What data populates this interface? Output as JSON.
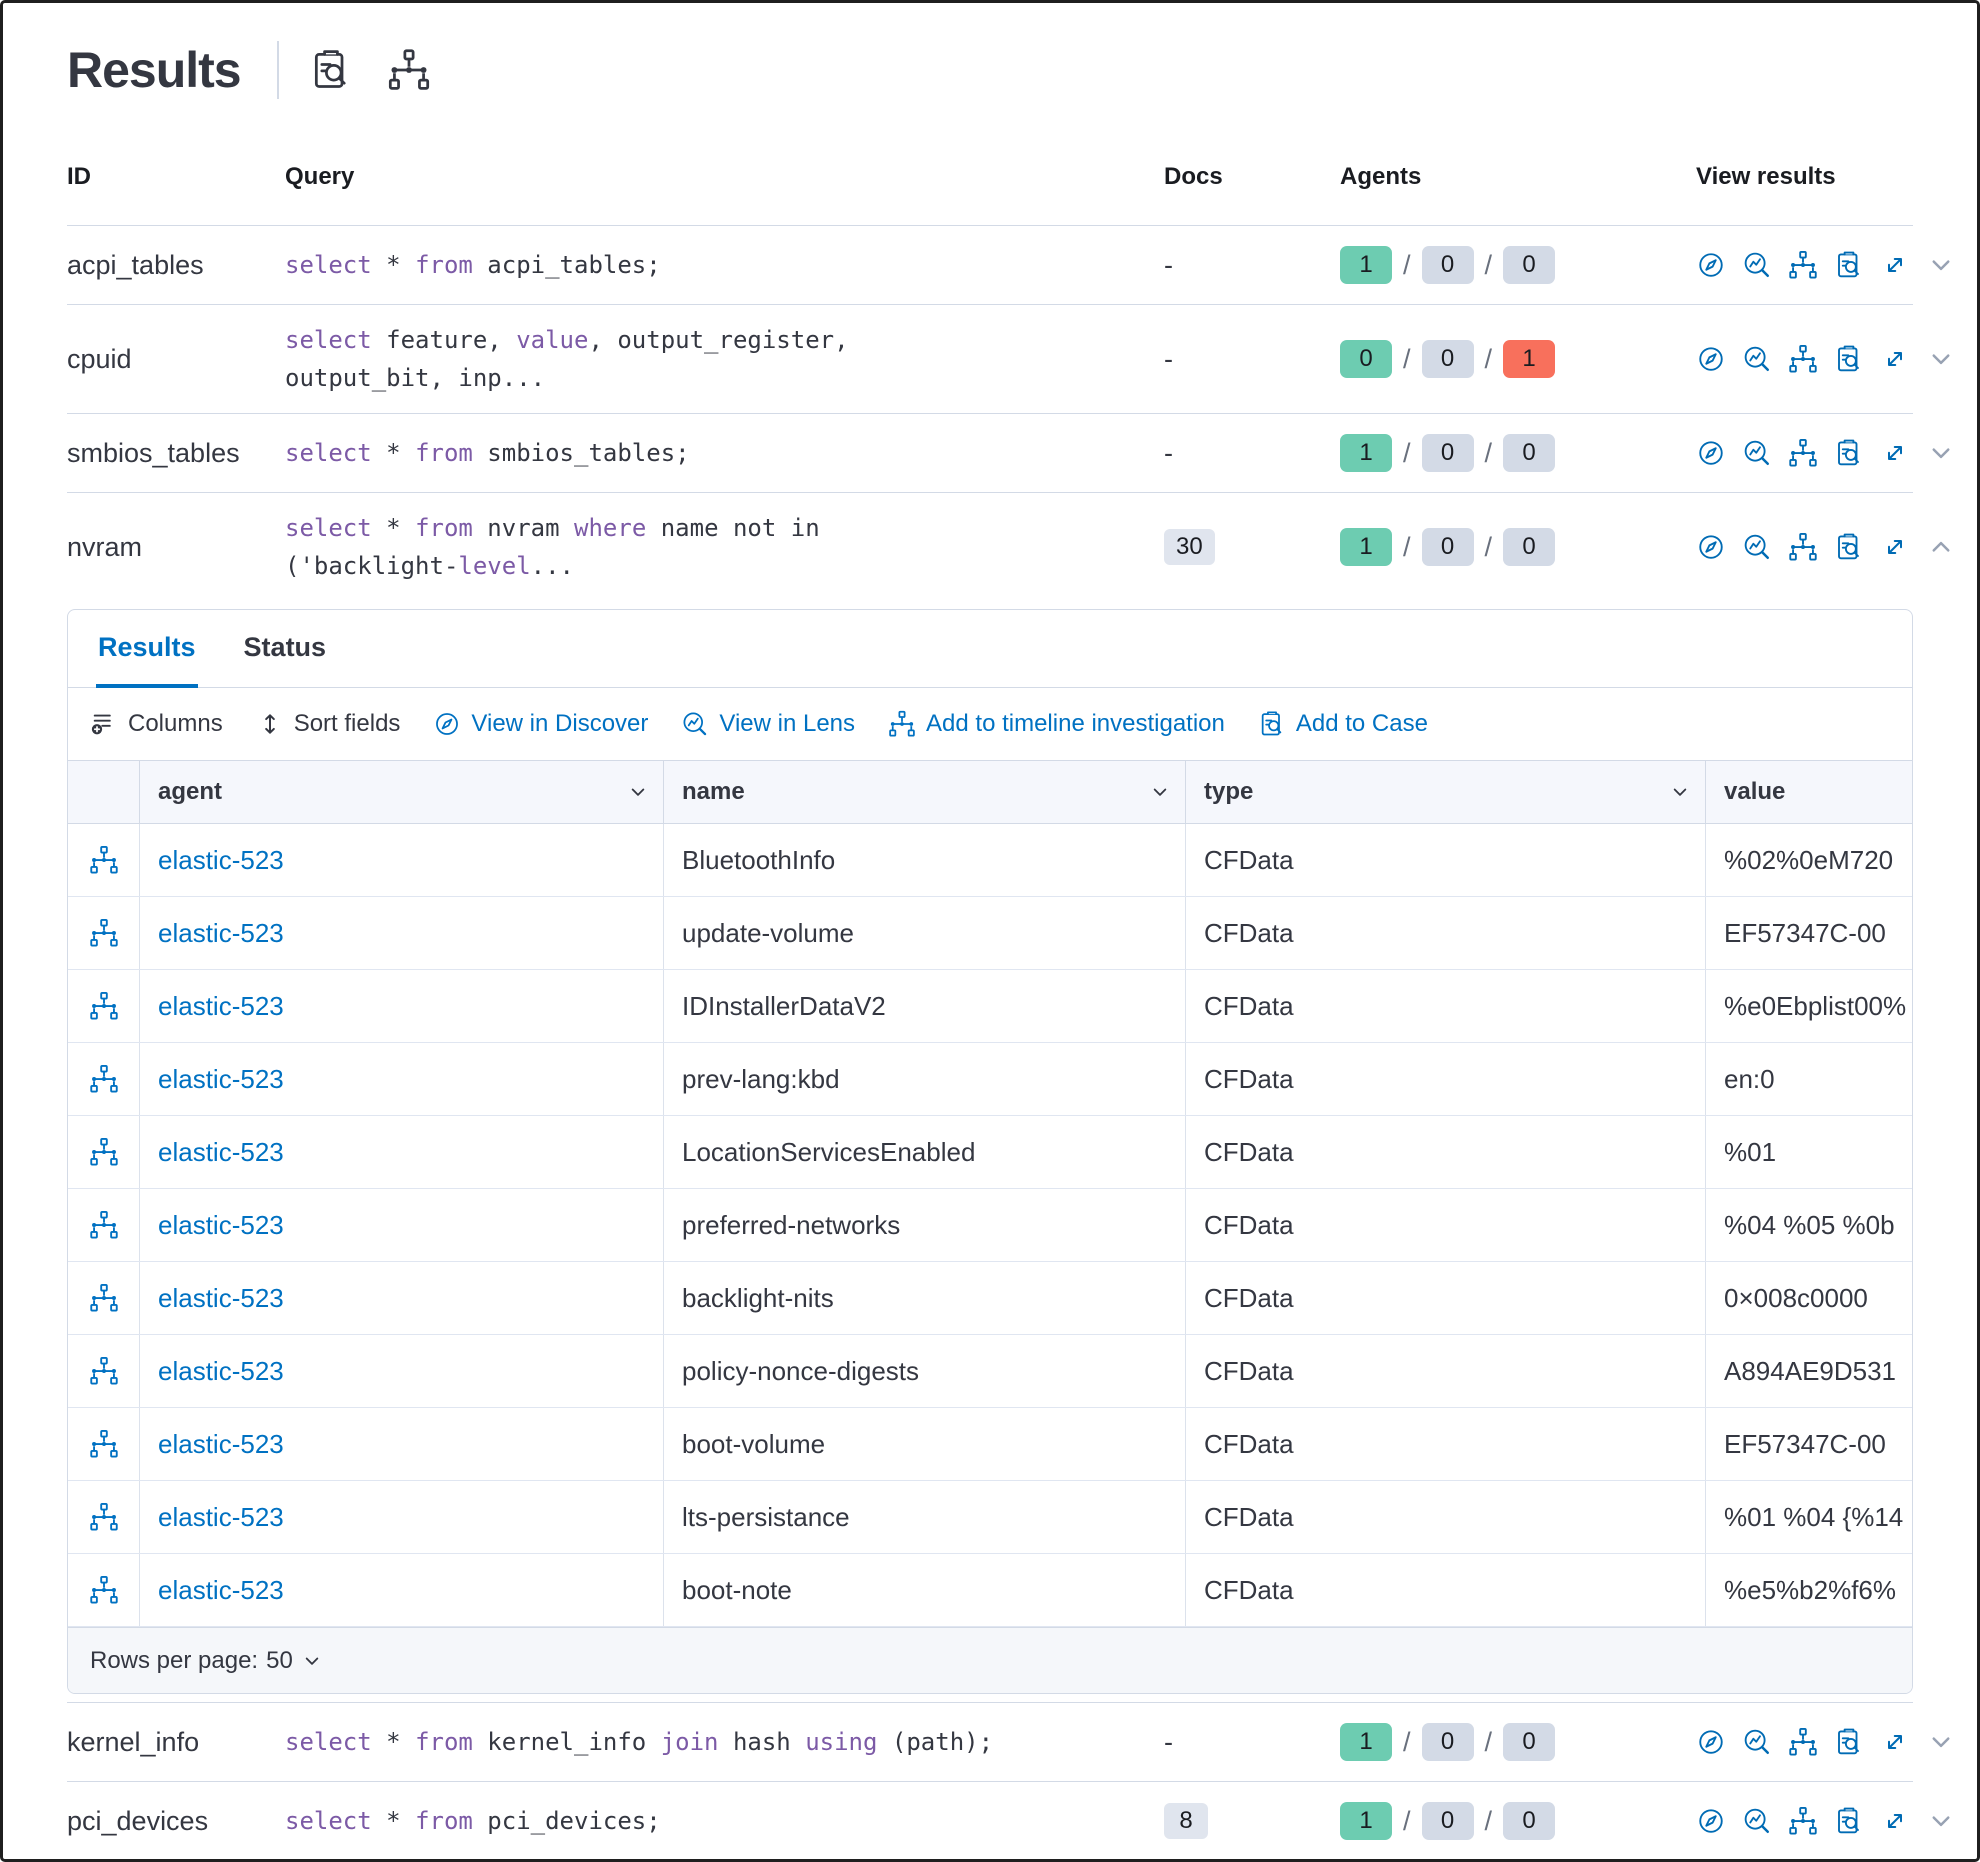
{
  "title": "Results",
  "header": {
    "icons": [
      "inspect-icon",
      "timeline-icon"
    ]
  },
  "table": {
    "headers": {
      "id": "ID",
      "query": "Query",
      "docs": "Docs",
      "agents": "Agents",
      "view": "View results"
    },
    "rows": [
      {
        "id": "acpi_tables",
        "query_lines": [
          [
            [
              "select",
              "k"
            ],
            [
              " * ",
              ""
            ],
            [
              "from",
              "k"
            ],
            [
              " acpi_tables;",
              ""
            ]
          ]
        ],
        "docs": "-",
        "docs_badge": false,
        "agents": [
          [
            "1",
            "success"
          ],
          [
            "0",
            "neutral"
          ],
          [
            "0",
            "neutral"
          ]
        ],
        "expanded": false
      },
      {
        "id": "cpuid",
        "query_lines": [
          [
            [
              "select",
              "k"
            ],
            [
              " feature, ",
              ""
            ],
            [
              "value",
              "k"
            ],
            [
              ", output_register,",
              ""
            ]
          ],
          [
            [
              "output_bit, inp...",
              ""
            ]
          ]
        ],
        "docs": "-",
        "docs_badge": false,
        "agents": [
          [
            "0",
            "success"
          ],
          [
            "0",
            "neutral"
          ],
          [
            "1",
            "danger"
          ]
        ],
        "expanded": false
      },
      {
        "id": "smbios_tables",
        "query_lines": [
          [
            [
              "select",
              "k"
            ],
            [
              " * ",
              ""
            ],
            [
              "from",
              "k"
            ],
            [
              " smbios_tables;",
              ""
            ]
          ]
        ],
        "docs": "-",
        "docs_badge": false,
        "agents": [
          [
            "1",
            "success"
          ],
          [
            "0",
            "neutral"
          ],
          [
            "0",
            "neutral"
          ]
        ],
        "expanded": false
      },
      {
        "id": "nvram",
        "query_lines": [
          [
            [
              "select",
              "k"
            ],
            [
              " * ",
              ""
            ],
            [
              "from",
              "k"
            ],
            [
              " nvram ",
              ""
            ],
            [
              "where",
              "k"
            ],
            [
              " name not in",
              ""
            ]
          ],
          [
            [
              "('backlight-",
              ""
            ],
            [
              "level",
              "k"
            ],
            [
              "...",
              ""
            ]
          ]
        ],
        "docs": "30",
        "docs_badge": true,
        "agents": [
          [
            "1",
            "success"
          ],
          [
            "0",
            "neutral"
          ],
          [
            "0",
            "neutral"
          ]
        ],
        "expanded": true
      },
      {
        "id": "kernel_info",
        "query_lines": [
          [
            [
              "select",
              "k"
            ],
            [
              " * ",
              ""
            ],
            [
              "from",
              "k"
            ],
            [
              " kernel_info ",
              ""
            ],
            [
              "join",
              "k"
            ],
            [
              " hash ",
              ""
            ],
            [
              "using",
              "k"
            ],
            [
              " (path);",
              ""
            ]
          ]
        ],
        "docs": "-",
        "docs_badge": false,
        "agents": [
          [
            "1",
            "success"
          ],
          [
            "0",
            "neutral"
          ],
          [
            "0",
            "neutral"
          ]
        ],
        "expanded": false,
        "after_panel": true
      },
      {
        "id": "pci_devices",
        "query_lines": [
          [
            [
              "select",
              "k"
            ],
            [
              " * ",
              ""
            ],
            [
              "from",
              "k"
            ],
            [
              " pci_devices;",
              ""
            ]
          ]
        ],
        "docs": "8",
        "docs_badge": true,
        "agents": [
          [
            "1",
            "success"
          ],
          [
            "0",
            "neutral"
          ],
          [
            "0",
            "neutral"
          ]
        ],
        "expanded": false,
        "last": true
      }
    ]
  },
  "panel": {
    "tabs": [
      {
        "label": "Results",
        "active": true
      },
      {
        "label": "Status",
        "active": false
      }
    ],
    "toolbar": [
      {
        "label": "Columns",
        "icon": "columns",
        "color": "dark"
      },
      {
        "label": "Sort fields",
        "icon": "sort",
        "color": "dark"
      },
      {
        "label": "View in Discover",
        "icon": "discover",
        "color": "blue"
      },
      {
        "label": "View in Lens",
        "icon": "lens",
        "color": "blue"
      },
      {
        "label": "Add to timeline investigation",
        "icon": "node",
        "color": "blue"
      },
      {
        "label": "Add to Case",
        "icon": "inspect",
        "color": "blue"
      }
    ],
    "grid": {
      "columns": [
        {
          "label": "agent",
          "sortable": true
        },
        {
          "label": "name",
          "sortable": true
        },
        {
          "label": "type",
          "sortable": true
        },
        {
          "label": "value",
          "sortable": true
        }
      ],
      "rows": [
        {
          "agent": "elastic-523",
          "name": "BluetoothInfo",
          "type": "CFData",
          "value": "%02%0eM720"
        },
        {
          "agent": "elastic-523",
          "name": "update-volume",
          "type": "CFData",
          "value": "EF57347C-00"
        },
        {
          "agent": "elastic-523",
          "name": "IDInstallerDataV2",
          "type": "CFData",
          "value": "%e0Ebplist00%"
        },
        {
          "agent": "elastic-523",
          "name": "prev-lang:kbd",
          "type": "CFData",
          "value": "en:0"
        },
        {
          "agent": "elastic-523",
          "name": "LocationServicesEnabled",
          "type": "CFData",
          "value": "%01"
        },
        {
          "agent": "elastic-523",
          "name": "preferred-networks",
          "type": "CFData",
          "value": "%04 %05 %0b"
        },
        {
          "agent": "elastic-523",
          "name": "backlight-nits",
          "type": "CFData",
          "value": "0×008c0000"
        },
        {
          "agent": "elastic-523",
          "name": "policy-nonce-digests",
          "type": "CFData",
          "value": "A894AE9D531"
        },
        {
          "agent": "elastic-523",
          "name": "boot-volume",
          "type": "CFData",
          "value": "EF57347C-00"
        },
        {
          "agent": "elastic-523",
          "name": "lts-persistance",
          "type": "CFData",
          "value": "%01 %04 {%14"
        },
        {
          "agent": "elastic-523",
          "name": "boot-note",
          "type": "CFData",
          "value": "%e5%b2%f6%"
        }
      ]
    },
    "pagination": {
      "label": "Rows per page:",
      "value": "50"
    }
  },
  "colors": {
    "primary_blue": "#0071c2",
    "icon_blue": "#006bb4",
    "text_dark": "#343741",
    "keyword_purple": "#7c5aa6",
    "badge_success_bg": "#6dccb1",
    "badge_neutral_bg": "#d3dae6",
    "badge_danger_bg": "#f8705c",
    "docs_badge_bg": "#e0e5ee",
    "border": "#d3dae6"
  }
}
